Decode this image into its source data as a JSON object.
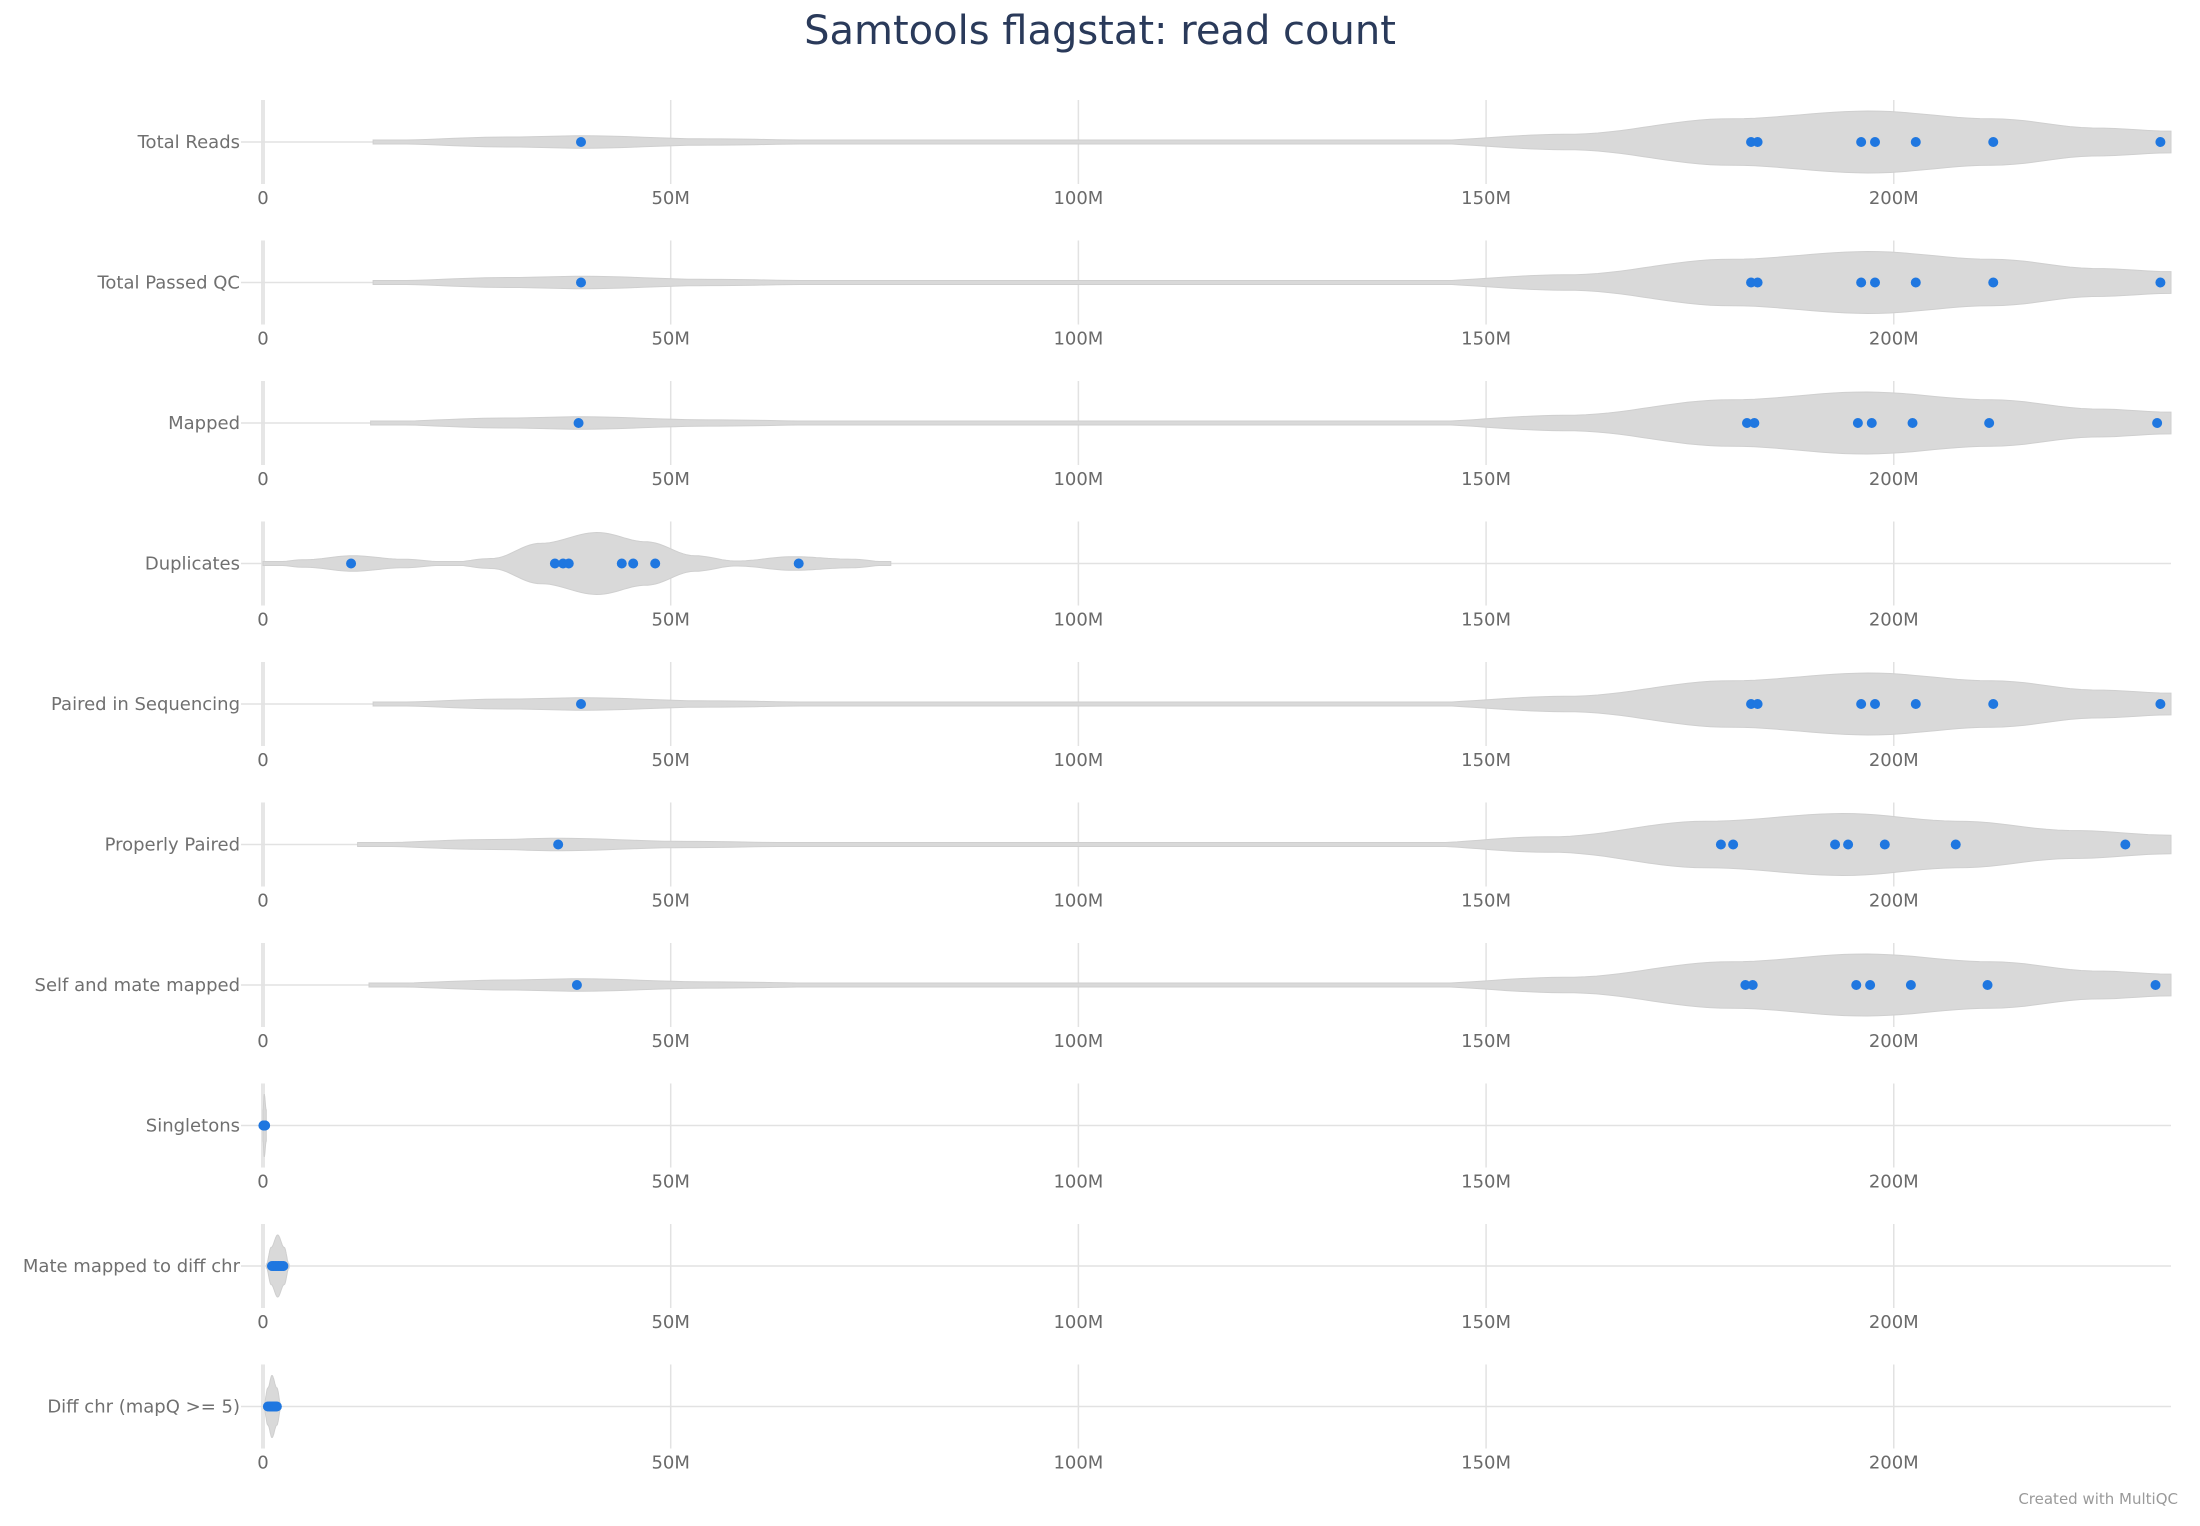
{
  "chart_data": {
    "type": "violin",
    "title": "Samtools flagstat: read count",
    "xlabel": "",
    "ylabel": "",
    "xlim": [
      0,
      234000000
    ],
    "grid": true,
    "x_ticks": [
      0,
      50000000,
      100000000,
      150000000,
      200000000
    ],
    "x_tick_labels": [
      "0",
      "50M",
      "100M",
      "150M",
      "200M"
    ],
    "violin_color": "#d9d9d9",
    "point_color": "#1f77e0",
    "panels": [
      {
        "name": "Total Reads",
        "values": [
          39000000,
          182500000,
          183300000,
          196000000,
          197700000,
          202700000,
          212200000,
          232700000
        ],
        "violin_profile": [
          [
            13500000,
            0.04
          ],
          [
            30000000,
            0.16
          ],
          [
            39000000,
            0.2
          ],
          [
            55000000,
            0.1
          ],
          [
            75000000,
            0.03
          ],
          [
            100000000,
            0.02
          ],
          [
            140000000,
            0.02
          ],
          [
            160000000,
            0.25
          ],
          [
            180000000,
            0.75
          ],
          [
            197000000,
            1.0
          ],
          [
            212000000,
            0.75
          ],
          [
            225000000,
            0.45
          ],
          [
            234000000,
            0.35
          ]
        ]
      },
      {
        "name": "Total Passed QC",
        "values": [
          39000000,
          182500000,
          183300000,
          196000000,
          197700000,
          202700000,
          212200000,
          232700000
        ],
        "violin_profile": [
          [
            13500000,
            0.04
          ],
          [
            30000000,
            0.16
          ],
          [
            39000000,
            0.2
          ],
          [
            55000000,
            0.1
          ],
          [
            75000000,
            0.03
          ],
          [
            100000000,
            0.02
          ],
          [
            140000000,
            0.02
          ],
          [
            160000000,
            0.25
          ],
          [
            180000000,
            0.75
          ],
          [
            197000000,
            1.0
          ],
          [
            212000000,
            0.75
          ],
          [
            225000000,
            0.45
          ],
          [
            234000000,
            0.35
          ]
        ]
      },
      {
        "name": "Mapped",
        "values": [
          38700000,
          182000000,
          182900000,
          195600000,
          197300000,
          202300000,
          211700000,
          232300000
        ],
        "violin_profile": [
          [
            13200000,
            0.04
          ],
          [
            30000000,
            0.16
          ],
          [
            38700000,
            0.2
          ],
          [
            55000000,
            0.1
          ],
          [
            75000000,
            0.03
          ],
          [
            100000000,
            0.02
          ],
          [
            140000000,
            0.02
          ],
          [
            160000000,
            0.25
          ],
          [
            180000000,
            0.75
          ],
          [
            196500000,
            1.0
          ],
          [
            212000000,
            0.75
          ],
          [
            225000000,
            0.45
          ],
          [
            234000000,
            0.35
          ]
        ]
      },
      {
        "name": "Duplicates",
        "values": [
          10800000,
          35800000,
          36800000,
          37500000,
          44000000,
          45400000,
          48100000,
          65700000
        ],
        "violin_profile": [
          [
            0,
            0.0
          ],
          [
            5000000,
            0.12
          ],
          [
            11000000,
            0.25
          ],
          [
            17000000,
            0.14
          ],
          [
            23000000,
            0.04
          ],
          [
            28000000,
            0.16
          ],
          [
            34000000,
            0.65
          ],
          [
            41000000,
            1.0
          ],
          [
            47000000,
            0.7
          ],
          [
            53000000,
            0.25
          ],
          [
            58000000,
            0.08
          ],
          [
            65000000,
            0.22
          ],
          [
            72000000,
            0.14
          ],
          [
            77000000,
            0.04
          ]
        ]
      },
      {
        "name": "Paired in Sequencing",
        "values": [
          39000000,
          182500000,
          183300000,
          196000000,
          197700000,
          202700000,
          212200000,
          232700000
        ],
        "violin_profile": [
          [
            13500000,
            0.04
          ],
          [
            30000000,
            0.16
          ],
          [
            39000000,
            0.2
          ],
          [
            55000000,
            0.1
          ],
          [
            75000000,
            0.03
          ],
          [
            100000000,
            0.02
          ],
          [
            140000000,
            0.02
          ],
          [
            160000000,
            0.25
          ],
          [
            180000000,
            0.75
          ],
          [
            197000000,
            1.0
          ],
          [
            212000000,
            0.75
          ],
          [
            225000000,
            0.45
          ],
          [
            234000000,
            0.35
          ]
        ]
      },
      {
        "name": "Properly Paired",
        "values": [
          36200000,
          178800000,
          180300000,
          192800000,
          194400000,
          198900000,
          207600000,
          228400000
        ],
        "violin_profile": [
          [
            11600000,
            0.04
          ],
          [
            28000000,
            0.16
          ],
          [
            36200000,
            0.2
          ],
          [
            52000000,
            0.1
          ],
          [
            72000000,
            0.03
          ],
          [
            100000000,
            0.02
          ],
          [
            140000000,
            0.02
          ],
          [
            158000000,
            0.25
          ],
          [
            177000000,
            0.75
          ],
          [
            194000000,
            1.0
          ],
          [
            208000000,
            0.75
          ],
          [
            222000000,
            0.45
          ],
          [
            234000000,
            0.3
          ]
        ]
      },
      {
        "name": "Self and mate mapped",
        "values": [
          38500000,
          181800000,
          182700000,
          195400000,
          197100000,
          202100000,
          211500000,
          232100000
        ],
        "violin_profile": [
          [
            13000000,
            0.04
          ],
          [
            30000000,
            0.16
          ],
          [
            38500000,
            0.2
          ],
          [
            55000000,
            0.1
          ],
          [
            75000000,
            0.03
          ],
          [
            100000000,
            0.02
          ],
          [
            140000000,
            0.02
          ],
          [
            160000000,
            0.25
          ],
          [
            180000000,
            0.75
          ],
          [
            196500000,
            1.0
          ],
          [
            212000000,
            0.75
          ],
          [
            225000000,
            0.45
          ],
          [
            234000000,
            0.35
          ]
        ]
      },
      {
        "name": "Singletons",
        "values": [
          50000,
          90000,
          120000,
          150000,
          180000,
          200000,
          230000,
          260000
        ],
        "violin_profile": [
          [
            0,
            0.5
          ],
          [
            150000,
            1.0
          ],
          [
            400000,
            0.5
          ]
        ]
      },
      {
        "name": "Mate mapped to diff chr",
        "values": [
          1100000,
          1300000,
          1500000,
          1700000,
          1900000,
          2100000,
          2300000,
          2500000
        ],
        "violin_profile": [
          [
            400000,
            0.05
          ],
          [
            1000000,
            0.6
          ],
          [
            1800000,
            1.0
          ],
          [
            2600000,
            0.6
          ],
          [
            3200000,
            0.05
          ]
        ]
      },
      {
        "name": "Diff chr (mapQ >= 5)",
        "values": [
          600000,
          800000,
          950000,
          1100000,
          1250000,
          1400000,
          1550000,
          1700000
        ],
        "violin_profile": [
          [
            100000,
            0.05
          ],
          [
            600000,
            0.6
          ],
          [
            1100000,
            1.0
          ],
          [
            1700000,
            0.6
          ],
          [
            2200000,
            0.05
          ]
        ]
      }
    ]
  },
  "footer": {
    "credit": "Created with MultiQC"
  }
}
